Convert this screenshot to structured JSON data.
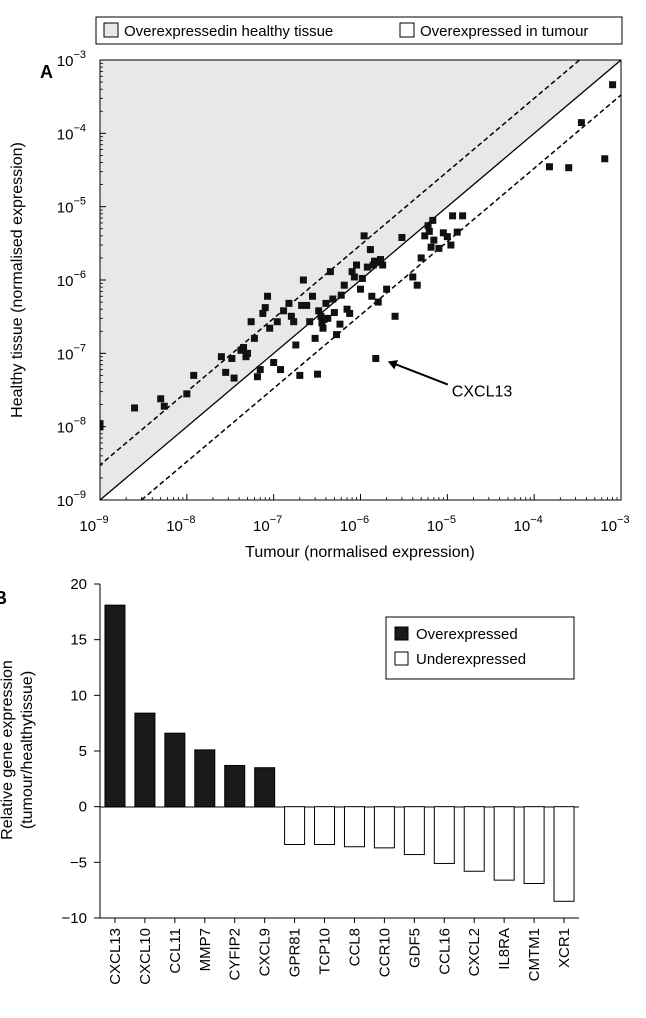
{
  "legend_top": {
    "entries": [
      {
        "label": "Overexpressedin healthy tissue",
        "fill": "#e8e8e8"
      },
      {
        "label": "Overexpressed in tumour",
        "fill": "#ffffff"
      }
    ]
  },
  "colors": {
    "region": "#e8e8e8",
    "over": "#1a1a1a",
    "under": "#ffffff",
    "axis": "#000000"
  },
  "chart_data": [
    {
      "panel": "A",
      "type": "scatter",
      "xlabel": "Tumour (normalised expression)",
      "ylabel": "Healthy tissue (normalised expression)",
      "xscale": "log",
      "yscale": "log",
      "xlim": [
        1e-09,
        0.001
      ],
      "ylim": [
        1e-09,
        0.001
      ],
      "ticks": [
        {
          "base": "10",
          "exp": "−9"
        },
        {
          "base": "10",
          "exp": "−8"
        },
        {
          "base": "10",
          "exp": "−7"
        },
        {
          "base": "10",
          "exp": "−6"
        },
        {
          "base": "10",
          "exp": "−5"
        },
        {
          "base": "10",
          "exp": "−4"
        },
        {
          "base": "10",
          "exp": "−3"
        }
      ],
      "reference_lines": [
        {
          "style": "solid",
          "ratio": 1
        },
        {
          "style": "dashed",
          "ratio": 3
        },
        {
          "style": "dashed",
          "ratio": 0.333
        }
      ],
      "shaded_region": "above y=x",
      "annotation": {
        "text": "CXCL13",
        "x": 1.5e-06,
        "y": 8.5e-08
      },
      "points": [
        [
          1e-09,
          1.1e-08
        ],
        [
          1e-09,
          1e-08
        ],
        [
          2.5e-09,
          1.8e-08
        ],
        [
          5e-09,
          2.4e-08
        ],
        [
          5.5e-09,
          1.9e-08
        ],
        [
          1e-08,
          2.8e-08
        ],
        [
          1.2e-08,
          5e-08
        ],
        [
          2.5e-08,
          9e-08
        ],
        [
          2.8e-08,
          5.5e-08
        ],
        [
          3.3e-08,
          8.5e-08
        ],
        [
          3.5e-08,
          4.6e-08
        ],
        [
          4.2e-08,
          1.1e-07
        ],
        [
          4.5e-08,
          1.2e-07
        ],
        [
          4.8e-08,
          9e-08
        ],
        [
          5e-08,
          1e-07
        ],
        [
          5.5e-08,
          2.7e-07
        ],
        [
          6e-08,
          1.6e-07
        ],
        [
          6.5e-08,
          4.8e-08
        ],
        [
          7e-08,
          6e-08
        ],
        [
          7.5e-08,
          3.5e-07
        ],
        [
          8e-08,
          4.2e-07
        ],
        [
          8.5e-08,
          6e-07
        ],
        [
          9e-08,
          2.2e-07
        ],
        [
          1e-07,
          7.5e-08
        ],
        [
          1.1e-07,
          2.7e-07
        ],
        [
          1.2e-07,
          6e-08
        ],
        [
          1.3e-07,
          3.8e-07
        ],
        [
          1.5e-07,
          4.8e-07
        ],
        [
          1.6e-07,
          3.2e-07
        ],
        [
          1.7e-07,
          2.7e-07
        ],
        [
          1.8e-07,
          1.3e-07
        ],
        [
          2e-07,
          5e-08
        ],
        [
          2.1e-07,
          4.5e-07
        ],
        [
          2.2e-07,
          1e-06
        ],
        [
          2.4e-07,
          4.5e-07
        ],
        [
          2.6e-07,
          2.7e-07
        ],
        [
          2.8e-07,
          6e-07
        ],
        [
          3e-07,
          1.6e-07
        ],
        [
          3.2e-07,
          5.2e-08
        ],
        [
          3.3e-07,
          3.8e-07
        ],
        [
          3.5e-07,
          3.2e-07
        ],
        [
          3.6e-07,
          2.6e-07
        ],
        [
          3.7e-07,
          2.2e-07
        ],
        [
          3.8e-07,
          2.9e-07
        ],
        [
          4e-07,
          4.8e-07
        ],
        [
          4.2e-07,
          3e-07
        ],
        [
          4.5e-07,
          1.3e-06
        ],
        [
          4.8e-07,
          5.5e-07
        ],
        [
          5e-07,
          3.6e-07
        ],
        [
          5.3e-07,
          1.8e-07
        ],
        [
          5.8e-07,
          2.5e-07
        ],
        [
          6e-07,
          6.2e-07
        ],
        [
          6.5e-07,
          8.5e-07
        ],
        [
          7e-07,
          4e-07
        ],
        [
          7.5e-07,
          3.5e-07
        ],
        [
          8e-07,
          1.3e-06
        ],
        [
          8.5e-07,
          1.1e-06
        ],
        [
          9e-07,
          1.6e-06
        ],
        [
          1e-06,
          7.5e-07
        ],
        [
          1.05e-06,
          1.05e-06
        ],
        [
          1.1e-06,
          4e-06
        ],
        [
          1.2e-06,
          1.5e-06
        ],
        [
          1.3e-06,
          2.6e-06
        ],
        [
          1.35e-06,
          6e-07
        ],
        [
          1.4e-06,
          1.6e-06
        ],
        [
          1.45e-06,
          1.8e-06
        ],
        [
          1.5e-06,
          1.8e-06
        ],
        [
          1.5e-06,
          8.5e-08
        ],
        [
          1.6e-06,
          5e-07
        ],
        [
          1.7e-06,
          1.9e-06
        ],
        [
          1.8e-06,
          1.6e-06
        ],
        [
          2e-06,
          7.5e-07
        ],
        [
          2.5e-06,
          3.2e-07
        ],
        [
          3e-06,
          3.8e-06
        ],
        [
          4e-06,
          1.1e-06
        ],
        [
          4.5e-06,
          8.5e-07
        ],
        [
          5e-06,
          2e-06
        ],
        [
          5.5e-06,
          4e-06
        ],
        [
          6e-06,
          5.5e-06
        ],
        [
          6.2e-06,
          4.6e-06
        ],
        [
          6.5e-06,
          2.8e-06
        ],
        [
          6.8e-06,
          6.5e-06
        ],
        [
          7e-06,
          3.5e-06
        ],
        [
          8e-06,
          2.7e-06
        ],
        [
          9e-06,
          4.4e-06
        ],
        [
          1e-05,
          3.9e-06
        ],
        [
          1.1e-05,
          3e-06
        ],
        [
          1.15e-05,
          7.5e-06
        ],
        [
          1.3e-05,
          4.5e-06
        ],
        [
          1.5e-05,
          7.5e-06
        ],
        [
          0.00015,
          3.5e-05
        ],
        [
          0.00025,
          3.4e-05
        ],
        [
          0.00065,
          4.5e-05
        ],
        [
          0.00035,
          0.00014
        ],
        [
          0.0008,
          0.00046
        ]
      ]
    },
    {
      "panel": "B",
      "type": "bar",
      "ylabel": "Relative gene expression",
      "ylabel2": "(tumour/healthytissue)",
      "ylim": [
        -10,
        20
      ],
      "yticks": [
        -10,
        -5,
        0,
        5,
        10,
        15,
        20
      ],
      "ytick_labels": [
        "−10",
        "−5",
        "0",
        "5",
        "10",
        "15",
        "20"
      ],
      "categories": [
        "CXCL13",
        "CXCL10",
        "CCL11",
        "MMP7",
        "CYFIP2",
        "CXCL9",
        "GPR81",
        "TCP10",
        "CCL8",
        "CCR10",
        "GDF5",
        "CCL16",
        "CXCL2",
        "IL8RA",
        "CMTM1",
        "XCR1"
      ],
      "values": [
        18.1,
        8.4,
        6.6,
        5.1,
        3.7,
        3.5,
        -3.4,
        -3.4,
        -3.6,
        -3.7,
        -4.3,
        -5.1,
        -5.8,
        -6.6,
        -6.9,
        -8.5
      ],
      "legend": [
        {
          "label": "Overexpressed",
          "fill": "#1a1a1a"
        },
        {
          "label": "Underexpressed",
          "fill": "#ffffff"
        }
      ]
    }
  ]
}
